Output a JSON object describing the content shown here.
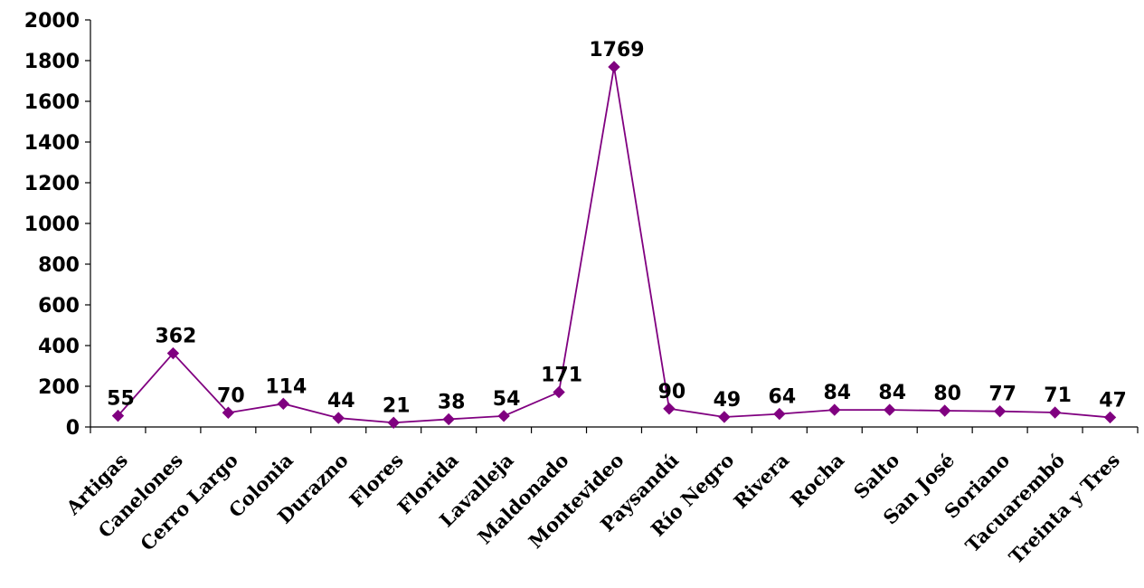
{
  "chart_data": {
    "type": "line",
    "title": "",
    "xlabel": "",
    "ylabel": "",
    "categories": [
      "Artigas",
      "Canelones",
      "Cerro Largo",
      "Colonia",
      "Durazno",
      "Flores",
      "Florida",
      "Lavalleja",
      "Maldonado",
      "Montevideo",
      "Paysandú",
      "Río Negro",
      "Rivera",
      "Rocha",
      "Salto",
      "San José",
      "Soriano",
      "Tacuarembó",
      "Treinta y Tres"
    ],
    "series": [
      {
        "values": [
          55,
          362,
          70,
          114,
          44,
          21,
          38,
          54,
          171,
          1769,
          90,
          49,
          64,
          84,
          84,
          80,
          77,
          71,
          47
        ],
        "data_labels": [
          "55",
          "362",
          "70",
          "114",
          "44",
          "21",
          "38",
          "54",
          "171",
          "1769",
          "90",
          "49",
          "64",
          "84",
          "84",
          "80",
          "77",
          "71",
          "47"
        ]
      }
    ],
    "ylim": [
      0,
      2000
    ],
    "y_ticks": [
      "0",
      "200",
      "400",
      "600",
      "800",
      "1000",
      "1200",
      "1400",
      "1600",
      "1800",
      "2000"
    ],
    "grid": false,
    "legend": "none",
    "line_color": "#800080",
    "marker": "diamond"
  }
}
